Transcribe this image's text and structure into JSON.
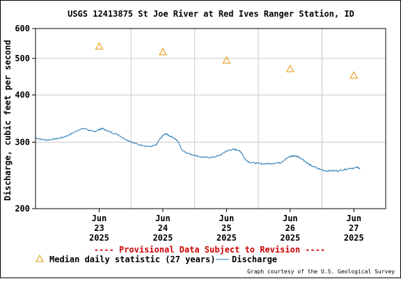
{
  "chart_data": {
    "type": "line",
    "title": "USGS 12413875 St Joe River at Red Ives Ranger Station, ID",
    "ylabel": "Discharge, cubic feet per second",
    "xlabel": "",
    "y_scale": "log",
    "ylim": [
      200,
      600
    ],
    "y_ticks": [
      200,
      300,
      400,
      500,
      600
    ],
    "x_range_days": [
      22.0,
      27.5
    ],
    "x_ticks": [
      {
        "day": 23,
        "label": [
          "Jun",
          "23",
          "2025"
        ]
      },
      {
        "day": 24,
        "label": [
          "Jun",
          "24",
          "2025"
        ]
      },
      {
        "day": 25,
        "label": [
          "Jun",
          "25",
          "2025"
        ]
      },
      {
        "day": 26,
        "label": [
          "Jun",
          "26",
          "2025"
        ]
      },
      {
        "day": 27,
        "label": [
          "Jun",
          "27",
          "2025"
        ]
      }
    ],
    "grid": true,
    "series": [
      {
        "name": "Discharge",
        "color": "#1f77b4",
        "points": [
          [
            22.0,
            308
          ],
          [
            22.1,
            305
          ],
          [
            22.2,
            304
          ],
          [
            22.3,
            306
          ],
          [
            22.4,
            308
          ],
          [
            22.5,
            312
          ],
          [
            22.6,
            318
          ],
          [
            22.7,
            325
          ],
          [
            22.78,
            326
          ],
          [
            22.85,
            322
          ],
          [
            22.92,
            320
          ],
          [
            23.0,
            324
          ],
          [
            23.05,
            326
          ],
          [
            23.12,
            322
          ],
          [
            23.2,
            318
          ],
          [
            23.3,
            314
          ],
          [
            23.4,
            306
          ],
          [
            23.5,
            301
          ],
          [
            23.6,
            296
          ],
          [
            23.7,
            294
          ],
          [
            23.8,
            292
          ],
          [
            23.9,
            295
          ],
          [
            23.95,
            305
          ],
          [
            24.0,
            312
          ],
          [
            24.05,
            316
          ],
          [
            24.1,
            312
          ],
          [
            24.18,
            308
          ],
          [
            24.25,
            299
          ],
          [
            24.3,
            286
          ],
          [
            24.4,
            280
          ],
          [
            24.5,
            277
          ],
          [
            24.6,
            274
          ],
          [
            24.7,
            273
          ],
          [
            24.8,
            274
          ],
          [
            24.9,
            277
          ],
          [
            24.98,
            283
          ],
          [
            25.05,
            286
          ],
          [
            25.12,
            287
          ],
          [
            25.18,
            286
          ],
          [
            25.24,
            281
          ],
          [
            25.28,
            272
          ],
          [
            25.35,
            266
          ],
          [
            25.45,
            264
          ],
          [
            25.55,
            263
          ],
          [
            25.65,
            263
          ],
          [
            25.75,
            264
          ],
          [
            25.85,
            265
          ],
          [
            25.92,
            270
          ],
          [
            26.0,
            275
          ],
          [
            26.05,
            276
          ],
          [
            26.12,
            275
          ],
          [
            26.2,
            270
          ],
          [
            26.28,
            263
          ],
          [
            26.35,
            259
          ],
          [
            26.45,
            255
          ],
          [
            26.55,
            252
          ],
          [
            26.65,
            252
          ],
          [
            26.75,
            252
          ],
          [
            26.85,
            254
          ],
          [
            26.95,
            256
          ],
          [
            27.05,
            257
          ],
          [
            27.1,
            256
          ]
        ]
      },
      {
        "name": "Median daily statistic (27 years)",
        "color": "#e69500",
        "marker": "triangle",
        "points": [
          [
            23,
            538
          ],
          [
            24,
            520
          ],
          [
            25,
            494
          ],
          [
            26,
            469
          ],
          [
            27,
            451
          ]
        ]
      }
    ]
  },
  "footer": {
    "provisional": "---- Provisional Data Subject to Revision ----",
    "legend_median": "Median daily statistic (27 years)",
    "legend_discharge": "Discharge",
    "credit": "Graph courtesy of the U.S. Geological Survey"
  }
}
